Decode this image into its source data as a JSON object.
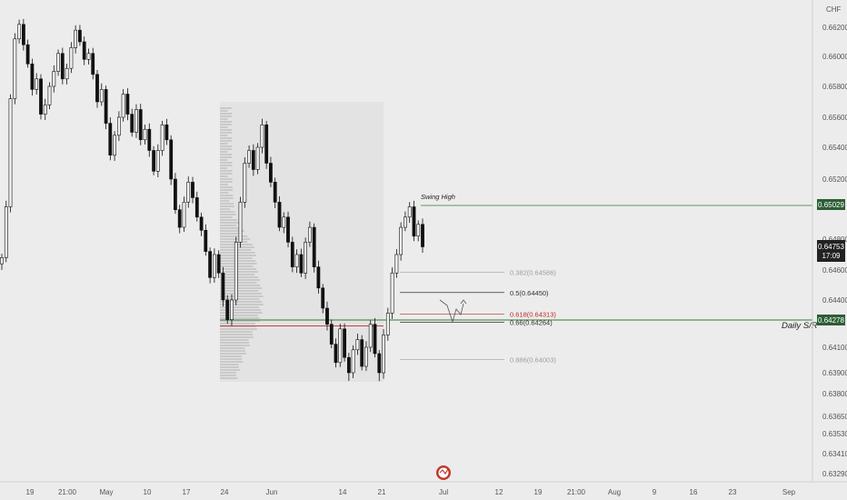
{
  "currency": "CHF",
  "price_axis": {
    "ticks": [
      "0.66200",
      "0.66000",
      "0.65800",
      "0.65600",
      "0.65400",
      "0.65200",
      "0.64800",
      "0.64600",
      "0.64400",
      "0.64100",
      "0.63900",
      "0.63800",
      "0.63650",
      "0.63530",
      "0.63410",
      "0.63290"
    ]
  },
  "time_axis": {
    "ticks": [
      "19",
      "21:00",
      "May",
      "10",
      "17",
      "24",
      "Jun",
      "14",
      "21",
      "Jul",
      "12",
      "19",
      "21:00",
      "Aug",
      "9",
      "16",
      "23",
      "Sep"
    ]
  },
  "badges": {
    "swing_price": "0.65029",
    "current_price": "0.64753",
    "countdown": "17:09",
    "sr_price": "0.64278"
  },
  "colors": {
    "up": "#111111",
    "down": "#111111",
    "green_line": "#2e7d32",
    "red_line": "#c62828",
    "fib": "#444444",
    "profile": "#cfcfcf"
  },
  "annotations": {
    "swing_high": "Swing High",
    "daily_sr": "Daily S/R"
  },
  "fib_levels": [
    {
      "label": "0.382(0.64586)",
      "value": 0.64586,
      "color": "#9e9e9e"
    },
    {
      "label": "0.5(0.64450)",
      "value": 0.6445,
      "color": "#333333"
    },
    {
      "label": "0.618(0.64313)",
      "value": 0.64313,
      "color": "#c62828"
    },
    {
      "label": "0.66(0.64264)",
      "value": 0.64264,
      "color": "#333333"
    },
    {
      "label": "0.886(0.64003)",
      "value": 0.64003,
      "color": "#9e9e9e"
    }
  ],
  "chart_data": {
    "type": "line",
    "title": "",
    "xlabel": "",
    "ylabel": "",
    "grid": false,
    "series": [
      {
        "values": [
          0.6468,
          0.6502,
          0.6572,
          0.6612,
          0.6622,
          0.6608,
          0.6595,
          0.6578,
          0.6585,
          0.6562,
          0.6568,
          0.658,
          0.659,
          0.6602,
          0.6585,
          0.6592,
          0.6606,
          0.6618,
          0.661,
          0.6598,
          0.6602,
          0.6588,
          0.657,
          0.6578,
          0.6556,
          0.6535,
          0.6548,
          0.656,
          0.6575,
          0.6562,
          0.655,
          0.6565,
          0.6545,
          0.6552,
          0.6538,
          0.6525,
          0.6538,
          0.6555,
          0.6545,
          0.652,
          0.65,
          0.6488,
          0.6505,
          0.6518,
          0.6508,
          0.6495,
          0.6486,
          0.6472,
          0.6455,
          0.647,
          0.6458,
          0.644,
          0.6428,
          0.644,
          0.6478,
          0.6505,
          0.653,
          0.6538,
          0.6526,
          0.654,
          0.6555,
          0.653,
          0.6518,
          0.6505,
          0.6488,
          0.6495,
          0.6478,
          0.6462,
          0.647,
          0.6458,
          0.6478,
          0.6488,
          0.6462,
          0.6448,
          0.6435,
          0.6425,
          0.6412,
          0.6398,
          0.6422,
          0.6402,
          0.639,
          0.6408,
          0.6415,
          0.6395,
          0.641,
          0.6425,
          0.6405,
          0.639,
          0.6418,
          0.6432,
          0.6458,
          0.647,
          0.6488,
          0.6495,
          0.6502,
          0.6482,
          0.649,
          0.6475
        ],
        "ylim": [
          0.6325,
          0.6632
        ]
      }
    ]
  }
}
